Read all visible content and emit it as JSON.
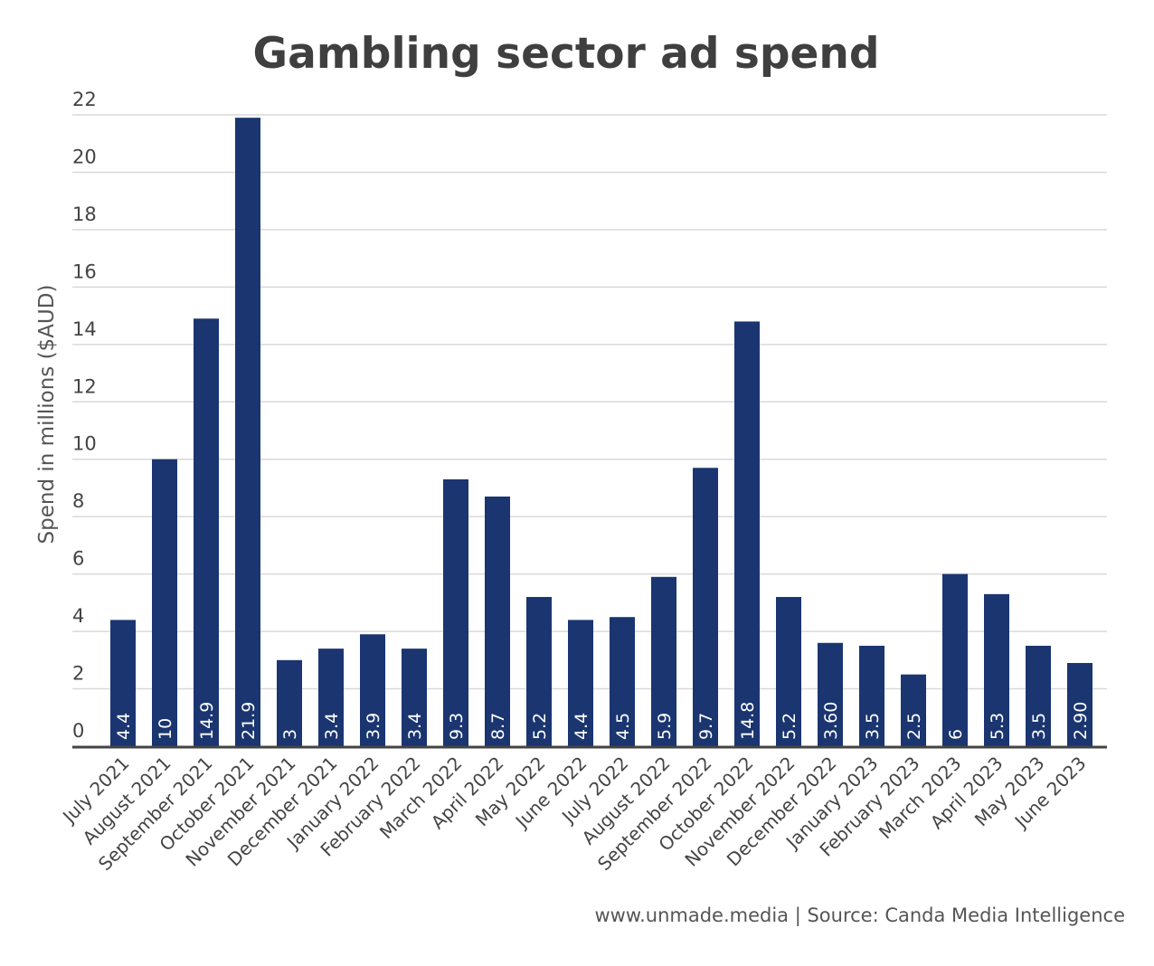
{
  "chart_data": {
    "type": "bar",
    "title": "Gambling sector ad spend",
    "xlabel": "",
    "ylabel": "Spend in millions ($AUD)",
    "ylim": [
      0,
      22
    ],
    "yticks": [
      0,
      2,
      4,
      6,
      8,
      10,
      12,
      14,
      16,
      18,
      20,
      22
    ],
    "grid": true,
    "bar_color": "#1a3570",
    "categories": [
      "July 2021",
      "August 2021",
      "September 2021",
      "October 2021",
      "November 2021",
      "December 2021",
      "January 2022",
      "February 2022",
      "March 2022",
      "April 2022",
      "May 2022",
      "June 2022",
      "July 2022",
      "August 2022",
      "September 2022",
      "October 2022",
      "November 2022",
      "December 2022",
      "January 2023",
      "February 2023",
      "March 2023",
      "April 2023",
      "May 2023",
      "June 2023"
    ],
    "values": [
      4.4,
      10,
      14.9,
      21.9,
      3,
      3.4,
      3.9,
      3.4,
      9.3,
      8.7,
      5.2,
      4.4,
      4.5,
      5.9,
      9.7,
      14.8,
      5.2,
      3.6,
      3.5,
      2.5,
      6,
      5.3,
      3.5,
      2.9
    ],
    "data_labels": [
      "4.4",
      "10",
      "14.9",
      "21.9",
      "3",
      "3.4",
      "3.9",
      "3.4",
      "9.3",
      "8.7",
      "5.2",
      "4.4",
      "4.5",
      "5.9",
      "9.7",
      "14.8",
      "5.2",
      "3.60",
      "3.5",
      "2.5",
      "6",
      "5.3",
      "3.5",
      "2.90"
    ]
  },
  "source": "www.unmade.media | Source: Canda Media Intelligence"
}
